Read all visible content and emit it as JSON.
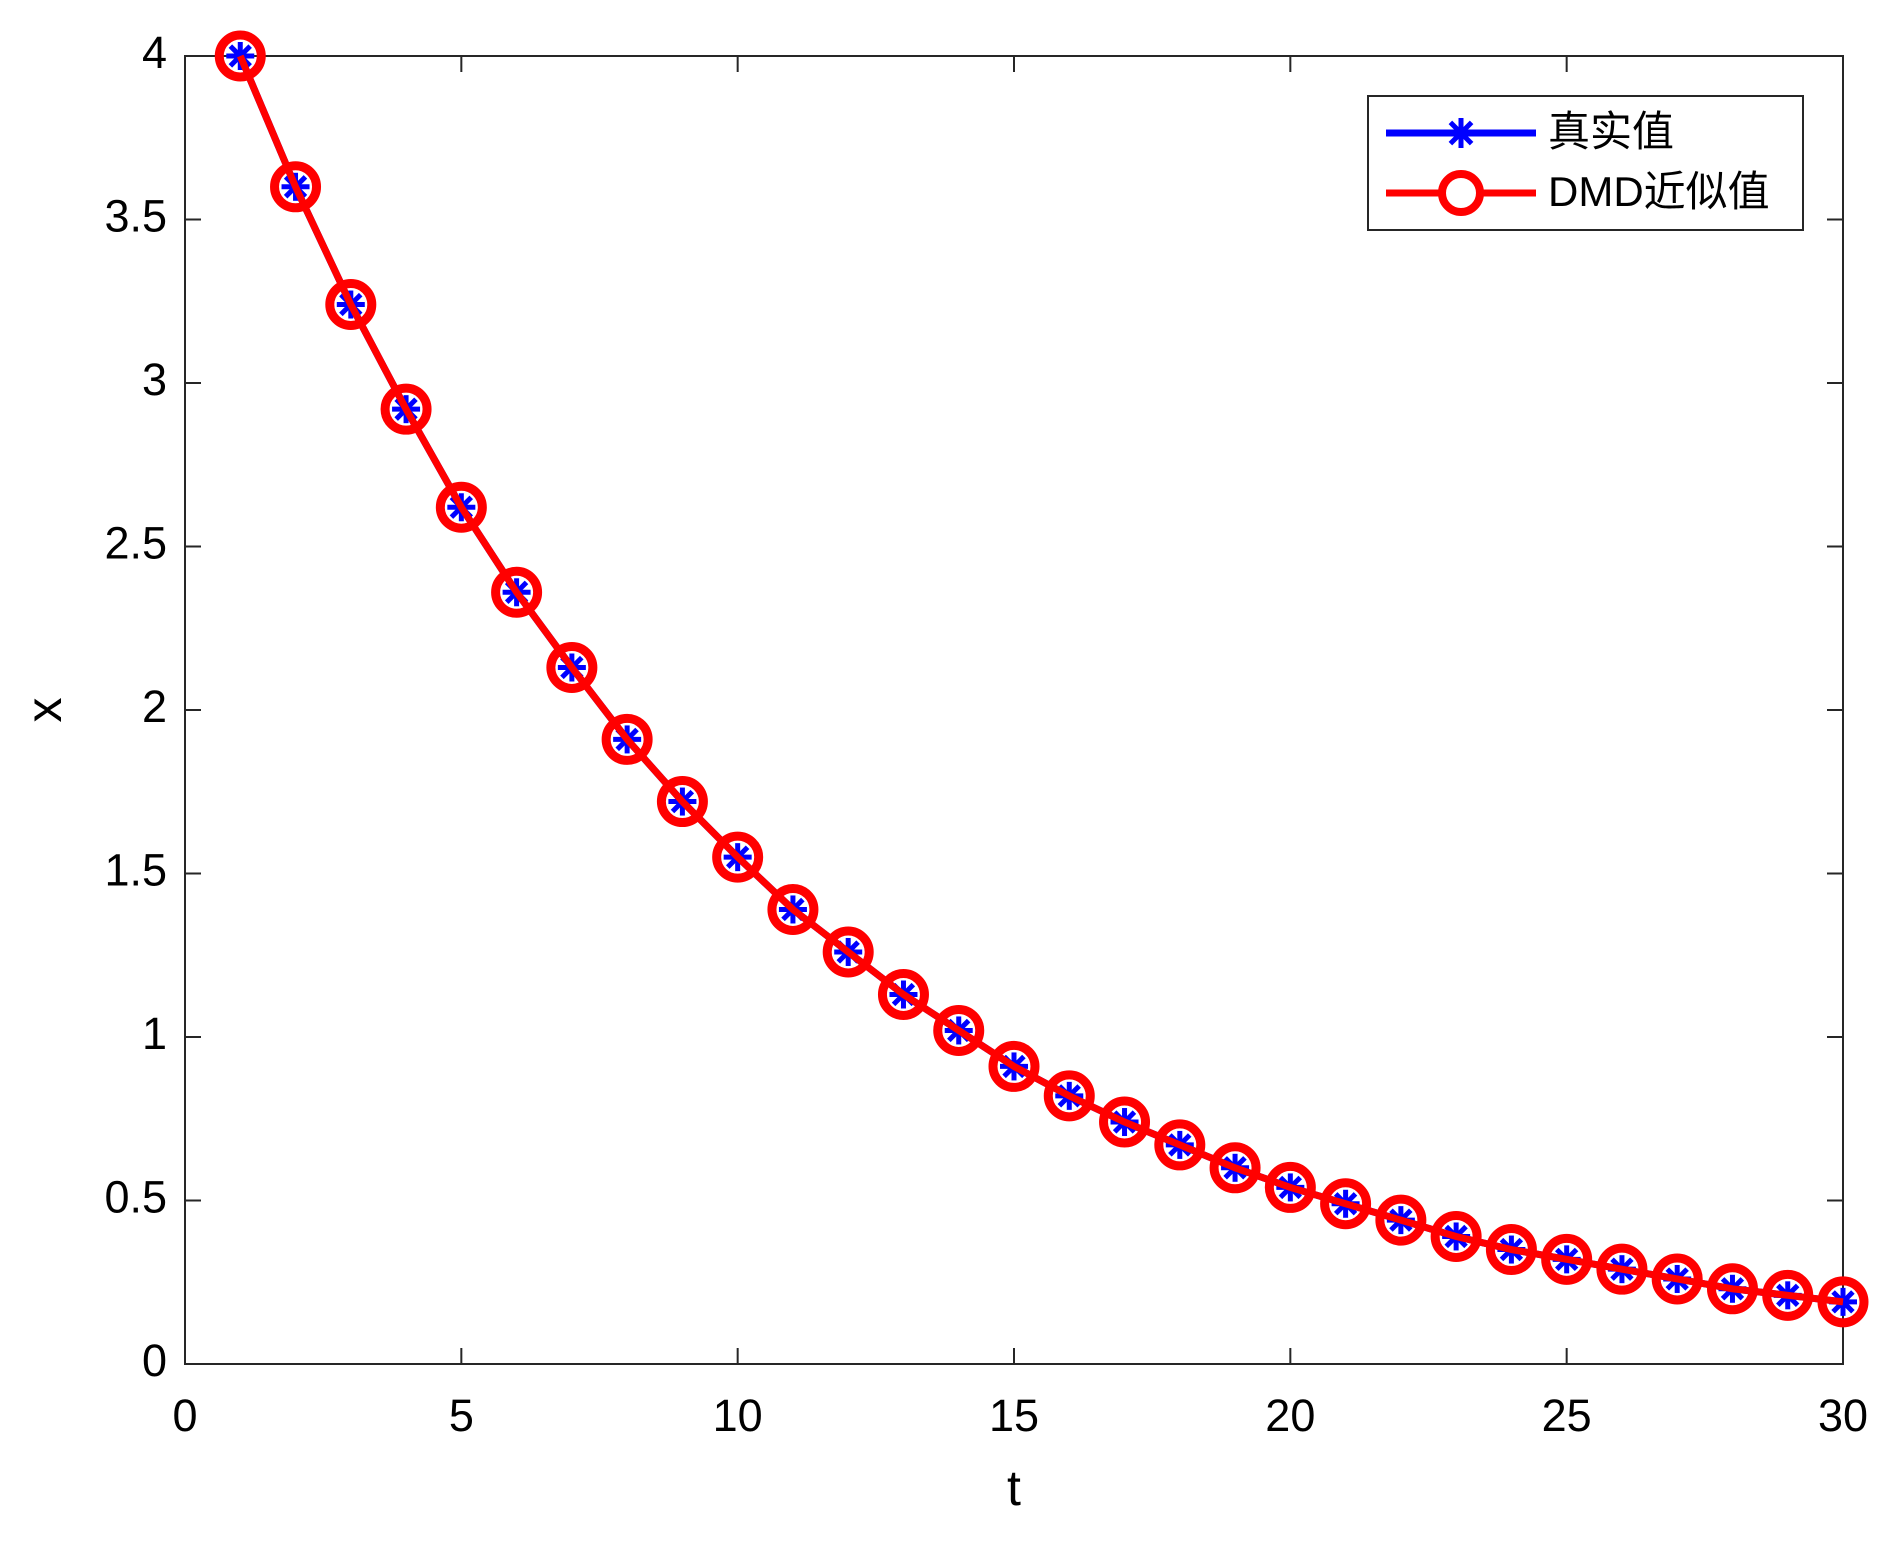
{
  "chart_data": {
    "type": "line",
    "xlabel": "t",
    "ylabel": "x",
    "x": [
      1,
      2,
      3,
      4,
      5,
      6,
      7,
      8,
      9,
      10,
      11,
      12,
      13,
      14,
      15,
      16,
      17,
      18,
      19,
      20,
      21,
      22,
      23,
      24,
      25,
      26,
      27,
      28,
      29,
      30
    ],
    "series": [
      {
        "name": "真实值",
        "color": "#0000ff",
        "marker": "asterisk",
        "values": [
          4,
          3.6,
          3.24,
          2.92,
          2.62,
          2.36,
          2.13,
          1.91,
          1.72,
          1.55,
          1.39,
          1.26,
          1.13,
          1.02,
          0.91,
          0.82,
          0.74,
          0.67,
          0.6,
          0.54,
          0.49,
          0.44,
          0.39,
          0.35,
          0.32,
          0.29,
          0.26,
          0.23,
          0.21,
          0.19
        ]
      },
      {
        "name": "DMD近似值",
        "color": "#ff0000",
        "marker": "circle",
        "values": [
          4,
          3.6,
          3.24,
          2.92,
          2.62,
          2.36,
          2.13,
          1.91,
          1.72,
          1.55,
          1.39,
          1.26,
          1.13,
          1.02,
          0.91,
          0.82,
          0.74,
          0.67,
          0.6,
          0.54,
          0.49,
          0.44,
          0.39,
          0.35,
          0.32,
          0.29,
          0.26,
          0.23,
          0.21,
          0.19
        ]
      }
    ],
    "xlim": [
      0,
      30
    ],
    "xticks": [
      0,
      5,
      10,
      15,
      20,
      25,
      30
    ],
    "ylim": [
      0,
      4
    ],
    "yticks": [
      0,
      0.5,
      1,
      1.5,
      2,
      2.5,
      3,
      3.5,
      4
    ],
    "legend": "top-right",
    "grid": false
  }
}
